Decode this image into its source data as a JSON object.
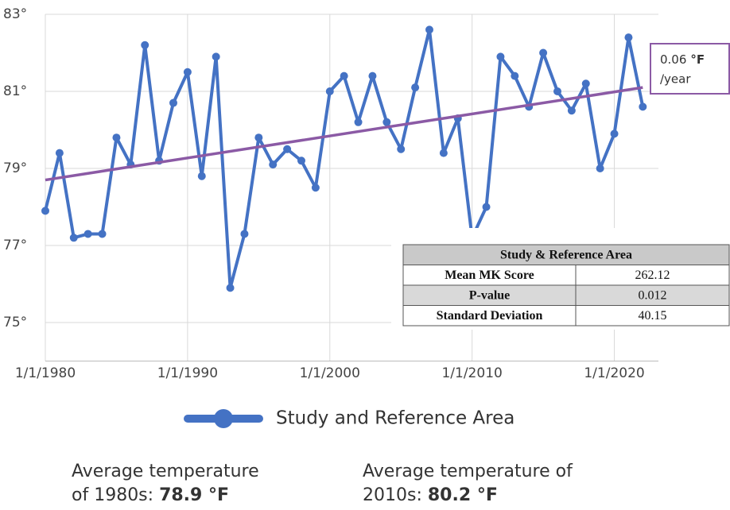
{
  "chart_data": {
    "type": "line",
    "x": [
      1980,
      1981,
      1982,
      1983,
      1984,
      1985,
      1986,
      1987,
      1988,
      1989,
      1990,
      1991,
      1992,
      1993,
      1994,
      1995,
      1996,
      1997,
      1998,
      1999,
      2000,
      2001,
      2002,
      2003,
      2004,
      2005,
      2006,
      2007,
      2008,
      2009,
      2010,
      2011,
      2012,
      2013,
      2014,
      2015,
      2016,
      2017,
      2018,
      2019,
      2020,
      2021,
      2022
    ],
    "series": [
      {
        "name": "Study and Reference Area",
        "color": "#4472c4",
        "values": [
          77.9,
          79.4,
          77.2,
          77.3,
          77.3,
          79.8,
          79.1,
          82.2,
          79.2,
          80.7,
          81.5,
          78.8,
          81.9,
          75.9,
          77.3,
          79.8,
          79.1,
          79.5,
          79.2,
          78.5,
          81.0,
          81.4,
          80.2,
          81.4,
          80.2,
          79.5,
          81.1,
          82.6,
          79.4,
          80.3,
          77.2,
          78.0,
          81.9,
          81.4,
          80.6,
          82.0,
          81.0,
          80.5,
          81.2,
          79.0,
          79.9,
          82.4,
          80.6
        ]
      }
    ],
    "trend": {
      "color": "#8b5aa5",
      "x": [
        1980,
        2022
      ],
      "values": [
        78.7,
        81.1
      ]
    },
    "annotation": {
      "value": "0.06",
      "unit": "°F",
      "per": "/year"
    },
    "xlim": [
      1980,
      2023.1
    ],
    "xticks": [
      {
        "value": 1980,
        "label": "1/1/1980"
      },
      {
        "value": 1990,
        "label": "1/1/1990"
      },
      {
        "value": 2000,
        "label": "1/1/2000"
      },
      {
        "value": 2010,
        "label": "1/1/2010"
      },
      {
        "value": 2020,
        "label": "1/1/2020"
      }
    ],
    "ylim": [
      74,
      83
    ],
    "yticks": [
      {
        "value": 75,
        "label": "75°"
      },
      {
        "value": 77,
        "label": "77°"
      },
      {
        "value": 79,
        "label": "79°"
      },
      {
        "value": 81,
        "label": "81°"
      },
      {
        "value": 83,
        "label": "83°"
      }
    ],
    "grid": true
  },
  "table": {
    "title": "Study & Reference Area",
    "rows": [
      [
        "Mean MK Score",
        "262.12"
      ],
      [
        "P-value",
        "0.012"
      ],
      [
        "Standard Deviation",
        "40.15"
      ]
    ]
  },
  "notes": [
    {
      "lines": [
        "Average temperature",
        "of 1980s:"
      ],
      "value": "78.9 °F"
    },
    {
      "lines": [
        "Average temperature of",
        "2010s:"
      ],
      "value": "80.2 °F"
    }
  ]
}
